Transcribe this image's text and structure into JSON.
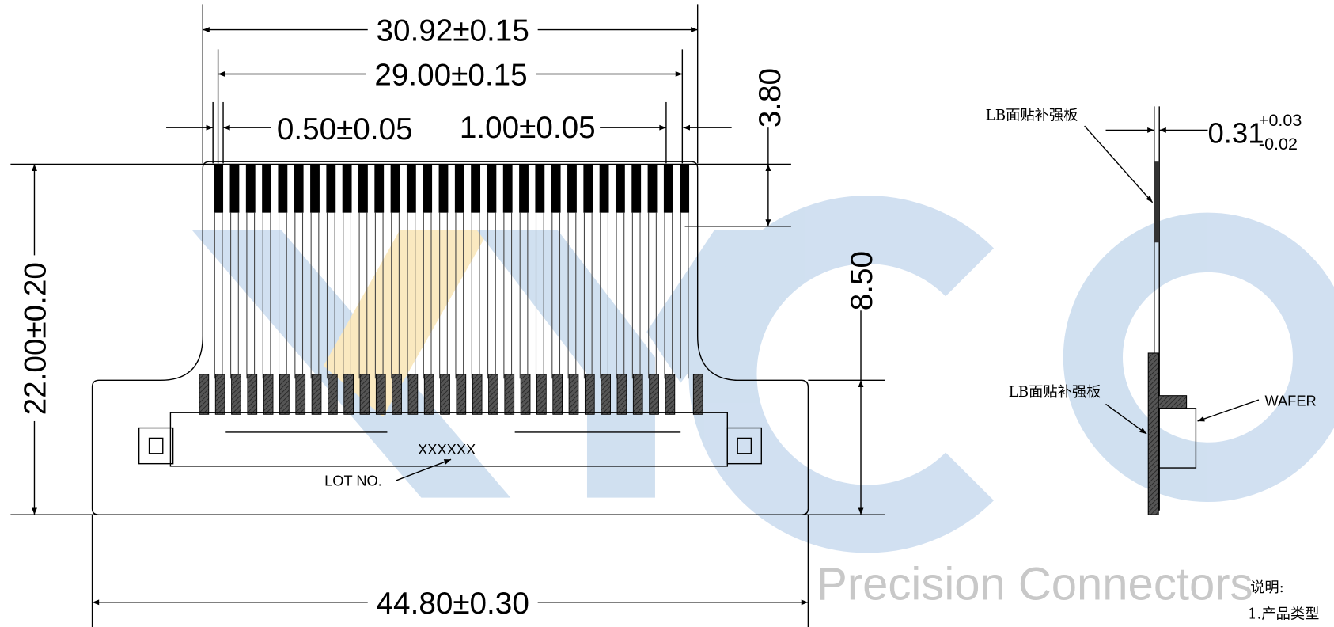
{
  "dimensions": {
    "overall_pitch_width": "30.92±0.15",
    "contact_span": "29.00±0.15",
    "pitch_tolerance": "0.50±0.05",
    "contact_width": "1.00±0.05",
    "finger_length": "3.80",
    "connector_height": "8.50",
    "total_length": "22.00±0.20",
    "board_width": "44.80±0.30"
  },
  "labels": {
    "lot_code": "XXXXXX",
    "lot_no": "LOT NO."
  },
  "side_view": {
    "stiffener_top": "LB面贴补强板",
    "thickness": "0.31",
    "thickness_plus": "+0.03",
    "thickness_minus": "-0.02",
    "stiffener_bottom": "LB面贴补强板",
    "wafer": "WAFER"
  },
  "watermark": {
    "tagline": "Precision Connectors"
  },
  "notes": {
    "title": "说明:",
    "item_1": "1.产品类型"
  }
}
